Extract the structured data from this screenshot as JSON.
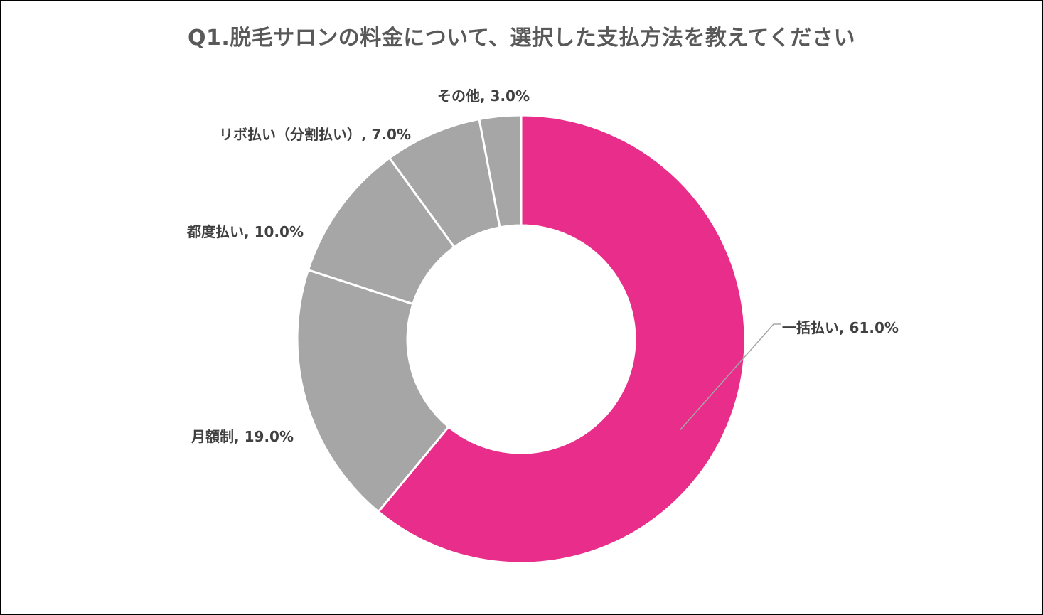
{
  "chart_data": {
    "type": "pie",
    "title": "Q1.脱毛サロンの料金について、選択した支払方法を教えてください",
    "slices": [
      {
        "label": "一括払い",
        "value": 61.0,
        "display": "一括払い, 61.0%",
        "color": "#E82D8A"
      },
      {
        "label": "月額制",
        "value": 19.0,
        "display": "月額制, 19.0%",
        "color": "#A6A6A6"
      },
      {
        "label": "都度払い",
        "value": 10.0,
        "display": "都度払い, 10.0%",
        "color": "#A6A6A6"
      },
      {
        "label": "リボ払い（分割払い）",
        "value": 7.0,
        "display": "リボ払い（分割払い）, 7.0%",
        "color": "#A6A6A6"
      },
      {
        "label": "その他",
        "value": 3.0,
        "display": "その他, 3.0%",
        "color": "#A6A6A6"
      }
    ],
    "unit": "%",
    "style": "donut"
  }
}
